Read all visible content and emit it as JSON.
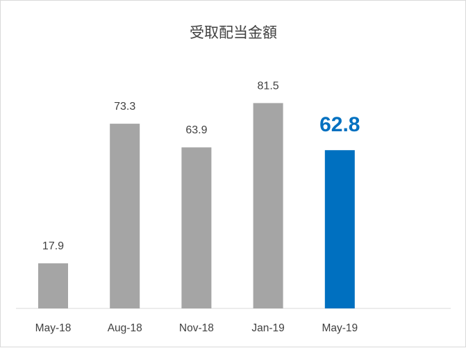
{
  "chart_data": {
    "type": "bar",
    "title": "受取配当金額",
    "categories": [
      "May-18",
      "Aug-18",
      "Nov-18",
      "Jan-19",
      "May-19"
    ],
    "values": [
      17.9,
      73.3,
      63.9,
      81.5,
      62.8
    ],
    "data_labels": [
      "17.9",
      "73.3",
      "63.9",
      "81.5",
      "62.8"
    ],
    "highlight_index": 4,
    "colors": {
      "bar": "#a5a5a5",
      "highlight": "#0070c0",
      "axis": "#d9d9d9"
    },
    "ylim": [
      0,
      110
    ],
    "grid": false,
    "legend": "none"
  }
}
